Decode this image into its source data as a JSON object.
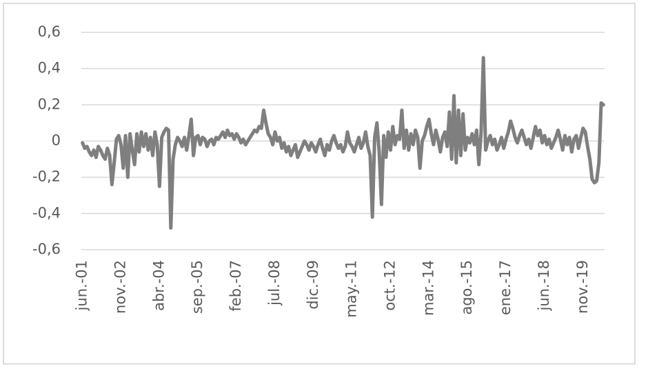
{
  "chart_data": {
    "type": "line",
    "categories": [
      "jun.-01",
      null,
      null,
      null,
      null,
      null,
      null,
      null,
      null,
      null,
      null,
      null,
      null,
      null,
      null,
      null,
      null,
      "nov.-02",
      null,
      null,
      null,
      null,
      null,
      null,
      null,
      null,
      null,
      null,
      null,
      null,
      null,
      null,
      null,
      null,
      "abr.-04",
      null,
      null,
      null,
      null,
      null,
      null,
      null,
      null,
      null,
      null,
      null,
      null,
      null,
      null,
      null,
      null,
      "sep.-05",
      null,
      null,
      null,
      null,
      null,
      null,
      null,
      null,
      null,
      null,
      null,
      null,
      null,
      null,
      null,
      null,
      "feb.-07",
      null,
      null,
      null,
      null,
      null,
      null,
      null,
      null,
      null,
      null,
      null,
      null,
      null,
      null,
      null,
      null,
      "jul.-08",
      null,
      null,
      null,
      null,
      null,
      null,
      null,
      null,
      null,
      null,
      null,
      null,
      null,
      null,
      null,
      null,
      "dic.-09",
      null,
      null,
      null,
      null,
      null,
      null,
      null,
      null,
      null,
      null,
      null,
      null,
      null,
      null,
      null,
      null,
      "may.-11",
      null,
      null,
      null,
      null,
      null,
      null,
      null,
      null,
      null,
      null,
      null,
      null,
      null,
      null,
      null,
      null,
      "oct.-12",
      null,
      null,
      null,
      null,
      null,
      null,
      null,
      null,
      null,
      null,
      null,
      null,
      null,
      null,
      null,
      null,
      "mar.-14",
      null,
      null,
      null,
      null,
      null,
      null,
      null,
      null,
      null,
      null,
      null,
      null,
      null,
      null,
      null,
      null,
      "ago.-15",
      null,
      null,
      null,
      null,
      null,
      null,
      null,
      null,
      null,
      null,
      null,
      null,
      null,
      null,
      null,
      null,
      "ene.-17",
      null,
      null,
      null,
      null,
      null,
      null,
      null,
      null,
      null,
      null,
      null,
      null,
      null,
      null,
      null,
      null,
      "jun.-18",
      null,
      null,
      null,
      null,
      null,
      null,
      null,
      null,
      null,
      null,
      null,
      null,
      null,
      null,
      null,
      null,
      "nov.-19",
      null,
      null,
      null,
      null,
      null,
      null,
      null,
      null,
      null
    ],
    "values": [
      -0.01,
      -0.04,
      -0.03,
      -0.06,
      -0.08,
      -0.05,
      -0.09,
      -0.03,
      -0.05,
      -0.08,
      -0.1,
      -0.04,
      -0.08,
      -0.24,
      -0.12,
      0.01,
      0.03,
      -0.02,
      -0.15,
      0.03,
      -0.2,
      0.04,
      -0.05,
      -0.13,
      0.04,
      -0.06,
      0.05,
      -0.03,
      0.04,
      -0.05,
      0.02,
      -0.08,
      0.05,
      -0.02,
      -0.25,
      0.02,
      0.05,
      0.07,
      0.06,
      -0.48,
      -0.1,
      -0.02,
      0.02,
      0.0,
      -0.03,
      0.02,
      -0.05,
      0.03,
      0.12,
      -0.08,
      0.02,
      0.03,
      -0.02,
      0.02,
      0.01,
      -0.03,
      0.0,
      0.01,
      -0.02,
      0.02,
      0.01,
      0.03,
      0.05,
      0.02,
      0.06,
      0.03,
      0.04,
      0.01,
      0.04,
      0.02,
      -0.01,
      0.01,
      -0.02,
      0.0,
      0.02,
      0.04,
      0.06,
      0.05,
      0.08,
      0.07,
      0.17,
      0.1,
      0.04,
      0.02,
      -0.02,
      0.05,
      0.0,
      0.02,
      -0.04,
      -0.01,
      -0.06,
      -0.03,
      -0.08,
      -0.05,
      -0.02,
      -0.09,
      -0.06,
      -0.03,
      0.0,
      -0.02,
      -0.05,
      -0.01,
      -0.03,
      -0.06,
      -0.02,
      0.01,
      -0.04,
      -0.08,
      -0.02,
      -0.05,
      0.0,
      0.03,
      -0.01,
      -0.04,
      -0.02,
      -0.06,
      -0.03,
      0.05,
      -0.01,
      -0.03,
      -0.06,
      -0.02,
      0.02,
      -0.04,
      -0.01,
      0.05,
      -0.03,
      -0.08,
      -0.42,
      0.02,
      0.1,
      -0.06,
      -0.35,
      0.03,
      -0.09,
      0.05,
      -0.05,
      0.08,
      -0.02,
      0.03,
      0.01,
      0.17,
      -0.04,
      0.06,
      -0.05,
      0.04,
      -0.02,
      0.06,
      0.02,
      -0.15,
      0.0,
      0.03,
      0.08,
      0.12,
      0.04,
      -0.02,
      0.06,
      0.01,
      -0.06,
      0.02,
      0.05,
      -0.03,
      0.16,
      -0.1,
      0.25,
      -0.12,
      0.17,
      -0.08,
      0.15,
      -0.05,
      0.02,
      -0.01,
      0.04,
      -0.02,
      0.06,
      -0.13,
      0.05,
      0.46,
      -0.05,
      0.0,
      0.03,
      -0.02,
      0.01,
      -0.05,
      -0.02,
      0.02,
      -0.04,
      0.01,
      0.05,
      0.11,
      0.07,
      0.02,
      -0.01,
      0.03,
      0.06,
      0.02,
      -0.02,
      0.01,
      -0.04,
      0.02,
      0.08,
      0.03,
      0.06,
      -0.01,
      0.03,
      -0.02,
      0.01,
      -0.04,
      -0.01,
      0.02,
      0.06,
      0.01,
      -0.05,
      0.03,
      -0.02,
      0.02,
      -0.06,
      0.01,
      0.03,
      -0.04,
      0.02,
      0.07,
      0.05,
      -0.03,
      -0.1,
      -0.21,
      -0.23,
      -0.22,
      -0.12,
      0.21,
      0.2
    ],
    "color": "#7f7f7f",
    "ylim": [
      -0.6,
      0.6
    ],
    "yticks": [
      {
        "value": -0.6,
        "label": "-0,6"
      },
      {
        "value": -0.4,
        "label": "-0,4"
      },
      {
        "value": -0.2,
        "label": "-0,2"
      },
      0,
      {
        "value": 0.2,
        "label": "0,2"
      },
      {
        "value": 0.4,
        "label": "0,4"
      },
      {
        "value": 0.6,
        "label": "0,6"
      }
    ],
    "grid": true
  }
}
